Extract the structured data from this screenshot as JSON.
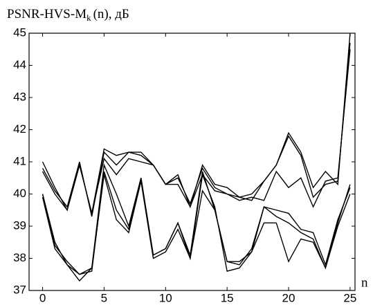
{
  "chart_data": {
    "type": "line",
    "title": "PSNR-HVS-M",
    "title_subscript": "k",
    "title_suffix": "(n), дБ",
    "xlabel": "n",
    "x": [
      0,
      1,
      2,
      3,
      4,
      5,
      6,
      7,
      8,
      9,
      10,
      11,
      12,
      13,
      14,
      15,
      16,
      17,
      18,
      19,
      20,
      21,
      22,
      23,
      24,
      25
    ],
    "series": [
      {
        "color": "#000000",
        "values": [
          41.0,
          40.2,
          39.5,
          40.9,
          39.4,
          41.4,
          41.2,
          41.3,
          41.3,
          40.9,
          40.3,
          40.6,
          39.6,
          40.9,
          40.3,
          40.2,
          39.9,
          40.0,
          40.4,
          40.9,
          41.9,
          41.3,
          40.2,
          40.7,
          40.3,
          45.0
        ]
      },
      {
        "color": "#000000",
        "values": [
          40.8,
          40.1,
          39.6,
          41.0,
          39.3,
          41.3,
          40.9,
          41.3,
          41.2,
          40.9,
          40.3,
          40.5,
          39.7,
          40.8,
          40.2,
          40.0,
          39.9,
          39.8,
          40.4,
          40.9,
          41.8,
          41.2,
          39.9,
          40.3,
          40.4,
          44.7
        ]
      },
      {
        "color": "#000000",
        "values": [
          40.7,
          40.0,
          39.5,
          40.9,
          39.4,
          41.1,
          40.6,
          41.1,
          41.0,
          40.9,
          40.3,
          40.3,
          39.6,
          40.6,
          40.1,
          40.0,
          39.8,
          39.9,
          39.8,
          40.7,
          40.2,
          40.5,
          39.6,
          40.4,
          40.5,
          44.5
        ]
      },
      {
        "color": "#000000",
        "values": [
          40.0,
          38.5,
          37.8,
          37.5,
          37.7,
          40.9,
          40.0,
          39.0,
          40.5,
          38.1,
          38.3,
          39.1,
          38.1,
          40.7,
          39.5,
          37.9,
          37.9,
          38.2,
          39.6,
          39.5,
          39.4,
          38.9,
          38.8,
          37.8,
          39.2,
          40.2
        ]
      },
      {
        "color": "#000000",
        "values": [
          39.9,
          38.3,
          37.8,
          37.3,
          37.7,
          40.6,
          39.2,
          38.8,
          40.4,
          38.0,
          38.2,
          38.9,
          38.0,
          40.6,
          39.6,
          37.6,
          37.7,
          38.2,
          39.1,
          39.1,
          37.9,
          38.6,
          38.5,
          37.7,
          39.0,
          40.0
        ]
      },
      {
        "color": "#000000",
        "values": [
          40.0,
          38.4,
          37.9,
          37.5,
          37.6,
          40.7,
          39.5,
          38.9,
          40.5,
          38.1,
          38.3,
          39.1,
          38.0,
          40.1,
          39.5,
          37.9,
          37.8,
          38.3,
          39.6,
          39.3,
          39.1,
          38.8,
          38.6,
          37.7,
          39.1,
          40.3
        ]
      }
    ],
    "xlim": [
      -1.1,
      25.4
    ],
    "xticks": [
      0,
      5,
      10,
      15,
      20,
      25
    ],
    "ylim": [
      37,
      45
    ],
    "yticks": [
      37,
      38,
      39,
      40,
      41,
      42,
      43,
      44,
      45
    ],
    "grid": false
  }
}
